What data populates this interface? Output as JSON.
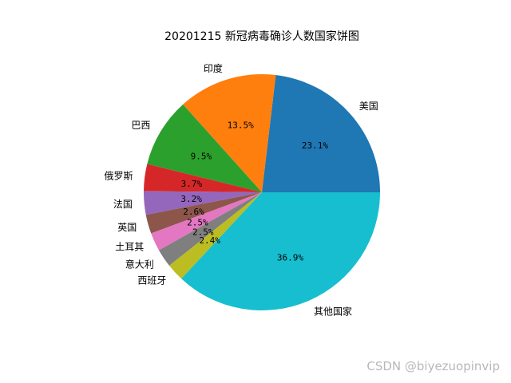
{
  "chart_data": {
    "type": "pie",
    "title": "20201215 新冠病毒确诊人数国家饼图",
    "start_angle_deg": 0,
    "direction": "counterclockwise",
    "slices": [
      {
        "label": "美国",
        "value": 23.1,
        "pct_text": "23.1%",
        "color": "#1f77b4"
      },
      {
        "label": "印度",
        "value": 13.5,
        "pct_text": "13.5%",
        "color": "#ff7f0e"
      },
      {
        "label": "巴西",
        "value": 9.5,
        "pct_text": "9.5%",
        "color": "#2ca02c"
      },
      {
        "label": "俄罗斯",
        "value": 3.7,
        "pct_text": "3.7%",
        "color": "#d62728"
      },
      {
        "label": "法国",
        "value": 3.2,
        "pct_text": "3.2%",
        "color": "#9467bd"
      },
      {
        "label": "英国",
        "value": 2.6,
        "pct_text": "2.6%",
        "color": "#8c564b"
      },
      {
        "label": "土耳其",
        "value": 2.5,
        "pct_text": "2.5%",
        "color": "#e377c2"
      },
      {
        "label": "意大利",
        "value": 2.5,
        "pct_text": "2.5%",
        "color": "#7f7f7f"
      },
      {
        "label": "西班牙",
        "value": 2.4,
        "pct_text": "2.4%",
        "color": "#bcbd22"
      },
      {
        "label": "其他国家",
        "value": 36.9,
        "pct_text": "36.9%",
        "color": "#17becf"
      }
    ]
  },
  "watermark": "CSDN @biyezuopinvip"
}
